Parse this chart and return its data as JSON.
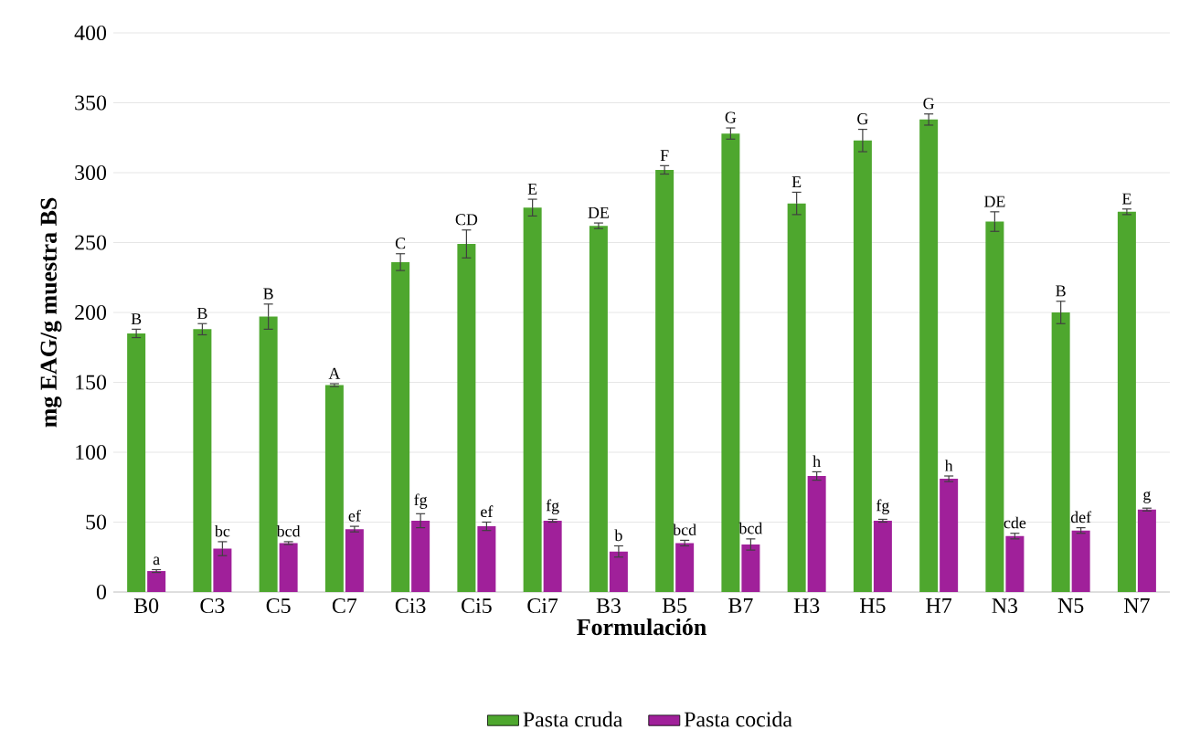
{
  "chart_data": {
    "type": "bar",
    "xlabel": "Formulación",
    "ylabel": "mg EAG/g muestra BS",
    "categories": [
      "B0",
      "C3",
      "C5",
      "C7",
      "Ci3",
      "Ci5",
      "Ci7",
      "B3",
      "B5",
      "B7",
      "H3",
      "H5",
      "H7",
      "N3",
      "N5",
      "N7"
    ],
    "series": [
      {
        "name": "Pasta cruda",
        "color": "#4ea72e",
        "values": [
          185,
          188,
          197,
          148,
          236,
          249,
          275,
          262,
          302,
          328,
          278,
          323,
          338,
          265,
          200,
          272
        ],
        "errors": [
          3,
          4,
          9,
          1,
          6,
          10,
          6,
          2,
          3,
          4,
          8,
          8,
          4,
          7,
          8,
          2
        ],
        "value_labels": [
          "B",
          "B",
          "B",
          "A",
          "C",
          "CD",
          "E",
          "DE",
          "F",
          "G",
          "E",
          "G",
          "G",
          "DE",
          "B",
          "E"
        ]
      },
      {
        "name": "Pasta cocida",
        "color": "#a0209a",
        "values": [
          15,
          31,
          35,
          45,
          51,
          47,
          51,
          29,
          35,
          34,
          83,
          51,
          81,
          40,
          44,
          59
        ],
        "errors": [
          1,
          5,
          1,
          2,
          5,
          3,
          1,
          4,
          2,
          4,
          3,
          1,
          2,
          2,
          2,
          1
        ],
        "value_labels": [
          "a",
          "bc",
          "bcd",
          "ef",
          "fg",
          "ef",
          "fg",
          "b",
          "bcd",
          "bcd",
          "h",
          "fg",
          "h",
          "cde",
          "def",
          "g"
        ]
      }
    ],
    "ylim": [
      0,
      400
    ],
    "yticks": [
      0,
      50,
      100,
      150,
      200,
      250,
      300,
      350,
      400
    ],
    "grid": "y",
    "legend": "bottom"
  }
}
